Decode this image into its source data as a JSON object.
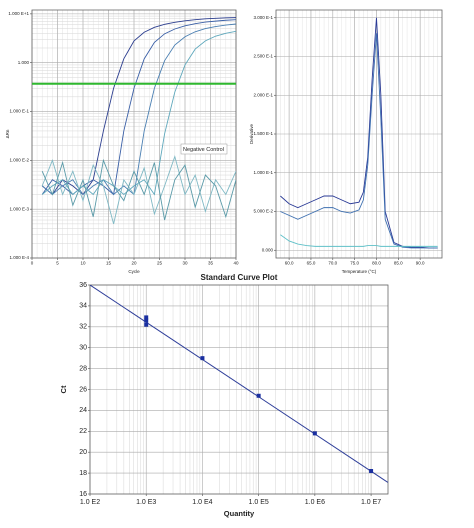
{
  "chart_data": [
    {
      "type": "line",
      "x_label": "Cycle",
      "y_label": "ΔRn",
      "annotation": "Negative Control",
      "yscale": "log",
      "grid": true,
      "threshold": 0.37,
      "threshold_color": "#2eb82e",
      "x": [
        2,
        4,
        6,
        8,
        10,
        12,
        14,
        16,
        18,
        20,
        22,
        24,
        26,
        28,
        30,
        32,
        34,
        36,
        38,
        40
      ],
      "xlim": [
        0,
        40
      ],
      "xticks": [
        0,
        5,
        10,
        15,
        20,
        25,
        30,
        35,
        40
      ],
      "ylim": [
        0.0001,
        12
      ],
      "yticks": [
        {
          "value": 10,
          "label": "1.000 E+1"
        },
        {
          "value": 1,
          "label": "1.000"
        },
        {
          "value": 0.1,
          "label": "1.000 E-1"
        },
        {
          "value": 0.01,
          "label": "1.000 E-2"
        },
        {
          "value": 0.001,
          "label": "1.000 E-3"
        },
        {
          "value": 0.0001,
          "label": "1.000 E-4"
        }
      ],
      "series": [
        {
          "color": "#2c3e8f",
          "values": [
            0.003,
            0.002,
            0.004,
            0.003,
            0.002,
            0.004,
            0.04,
            0.3,
            1.2,
            2.8,
            4.2,
            5.3,
            6.1,
            6.7,
            7.2,
            7.6,
            7.9,
            8.1,
            8.3,
            8.4
          ]
        },
        {
          "color": "#3a5fa6",
          "values": [
            0.002,
            0.004,
            0.003,
            0.002,
            0.003,
            0.004,
            0.003,
            0.002,
            0.04,
            0.3,
            1.2,
            2.6,
            3.9,
            4.9,
            5.7,
            6.3,
            6.8,
            7.1,
            7.4,
            7.6
          ]
        },
        {
          "color": "#4a7fb2",
          "values": [
            0.003,
            0.002,
            0.003,
            0.004,
            0.002,
            0.003,
            0.004,
            0.002,
            0.003,
            0.002,
            0.04,
            0.3,
            1.1,
            2.3,
            3.4,
            4.3,
            5.0,
            5.5,
            5.9,
            6.2
          ]
        },
        {
          "color": "#5fa8bc",
          "values": [
            0.002,
            0.003,
            0.004,
            0.002,
            0.003,
            0.002,
            0.004,
            0.003,
            0.002,
            0.003,
            0.004,
            0.002,
            0.035,
            0.25,
            0.9,
            1.9,
            2.8,
            3.5,
            4.0,
            4.4
          ]
        },
        {
          "color": "#7fb8c4",
          "values": [
            0.003,
            0.01,
            0.002,
            0.006,
            0.0015,
            0.008,
            0.003,
            0.0005,
            0.004,
            0.002,
            0.007,
            0.0008,
            0.003,
            0.012,
            0.002,
            0.005,
            0.0009,
            0.004,
            0.002,
            0.006
          ]
        },
        {
          "color": "#5a9aa8",
          "values": [
            0.006,
            0.002,
            0.009,
            0.0012,
            0.004,
            0.0007,
            0.01,
            0.003,
            0.0015,
            0.006,
            0.002,
            0.009,
            0.0006,
            0.004,
            0.008,
            0.0011,
            0.005,
            0.003,
            0.0007,
            0.004
          ]
        }
      ]
    },
    {
      "type": "line",
      "x_label": "Temperature (°C)",
      "y_label": "Derivative",
      "grid": true,
      "x": [
        58,
        60,
        62,
        64,
        66,
        68,
        70,
        72,
        74,
        76,
        77,
        78,
        79,
        80,
        81,
        82,
        84,
        86,
        88,
        90,
        92,
        94
      ],
      "xlim": [
        57,
        95
      ],
      "xticks": [
        {
          "value": 60,
          "label": "60.0"
        },
        {
          "value": 65,
          "label": "65.0"
        },
        {
          "value": 70,
          "label": "70.0"
        },
        {
          "value": 75,
          "label": "75.0"
        },
        {
          "value": 80,
          "label": "80.0"
        },
        {
          "value": 85,
          "label": "85.0"
        },
        {
          "value": 90,
          "label": "90.0"
        }
      ],
      "ylim": [
        -0.01,
        0.31
      ],
      "yticks": [
        {
          "value": 0,
          "label": "0.000"
        },
        {
          "value": 0.05,
          "label": "5.000 E-2"
        },
        {
          "value": 0.1,
          "label": "1.000 E-1"
        },
        {
          "value": 0.15,
          "label": "1.500 E-1"
        },
        {
          "value": 0.2,
          "label": "2.000 E-1"
        },
        {
          "value": 0.25,
          "label": "2.500 E-1"
        },
        {
          "value": 0.3,
          "label": "3.000 E-1"
        }
      ],
      "series": [
        {
          "color": "#2a3a96",
          "values": [
            0.07,
            0.06,
            0.055,
            0.06,
            0.065,
            0.07,
            0.07,
            0.065,
            0.06,
            0.062,
            0.075,
            0.12,
            0.22,
            0.3,
            0.2,
            0.05,
            0.01,
            0.005,
            0.004,
            0.004,
            0.003,
            0.003
          ]
        },
        {
          "color": "#3d6fb0",
          "values": [
            0.05,
            0.045,
            0.04,
            0.045,
            0.05,
            0.055,
            0.055,
            0.05,
            0.048,
            0.052,
            0.065,
            0.11,
            0.2,
            0.28,
            0.17,
            0.04,
            0.008,
            0.004,
            0.003,
            0.003,
            0.003,
            0.003
          ]
        },
        {
          "color": "#5fc0c8",
          "values": [
            0.02,
            0.012,
            0.008,
            0.006,
            0.005,
            0.005,
            0.005,
            0.005,
            0.005,
            0.005,
            0.005,
            0.006,
            0.006,
            0.006,
            0.005,
            0.005,
            0.005,
            0.005,
            0.005,
            0.005,
            0.005,
            0.005
          ]
        }
      ]
    },
    {
      "type": "scatter",
      "title": "Standard Curve Plot",
      "x_label": "Quantity",
      "y_label": "Ct",
      "xscale": "log",
      "grid": true,
      "color": "#1a2fa0",
      "x": [
        1000,
        1000,
        1000,
        10000,
        100000,
        1000000,
        10000000
      ],
      "values": [
        32.9,
        32.6,
        32.2,
        29,
        25.4,
        21.8,
        18.2
      ],
      "fit": {
        "x": [
          100,
          20000000
        ],
        "values": [
          36,
          17.1
        ],
        "color": "#2f3f9a"
      },
      "xlim": [
        100,
        20000000
      ],
      "xticks": [
        {
          "value": 100,
          "label": "1.0 E2"
        },
        {
          "value": 1000,
          "label": "1.0 E3"
        },
        {
          "value": 10000,
          "label": "1.0 E4"
        },
        {
          "value": 100000,
          "label": "1.0 E5"
        },
        {
          "value": 1000000,
          "label": "1.0 E6"
        },
        {
          "value": 10000000,
          "label": "1.0 E7"
        }
      ],
      "ylim": [
        16,
        36
      ],
      "yticks": [
        16,
        18,
        20,
        22,
        24,
        26,
        28,
        30,
        32,
        34,
        36
      ]
    }
  ]
}
